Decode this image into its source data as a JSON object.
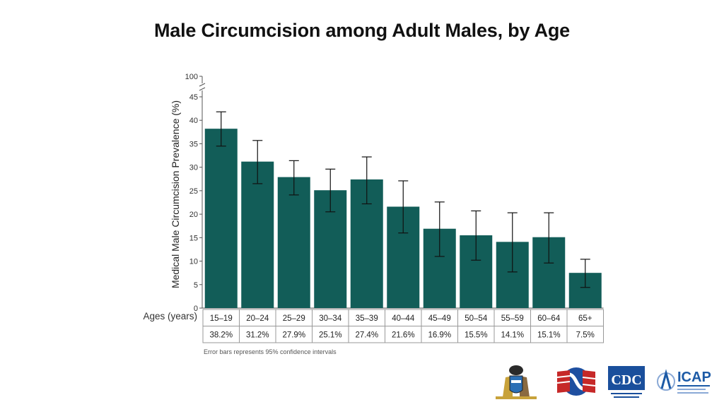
{
  "title": "Male Circumcision among Adult Males, by Age",
  "footnote": "Error bars represents 95% confidence intervals",
  "chart_data": {
    "type": "bar",
    "title": "",
    "ylabel": "Medical Male Circumcision Prevalence (%)",
    "xlabel": "Ages (years)",
    "ylim": [
      0,
      45
    ],
    "y_ticks": [
      0,
      5,
      10,
      15,
      20,
      25,
      30,
      35,
      40,
      45
    ],
    "y_break_label": "100",
    "categories": [
      "15–19",
      "20–24",
      "25–29",
      "30–34",
      "35–39",
      "40–44",
      "45–49",
      "50–54",
      "55–59",
      "60–64",
      "65+"
    ],
    "values": [
      38.2,
      31.2,
      27.9,
      25.1,
      27.4,
      21.6,
      16.9,
      15.5,
      14.1,
      15.1,
      7.5
    ],
    "value_labels": [
      "38.2%",
      "31.2%",
      "27.9%",
      "25.1%",
      "27.4%",
      "21.6%",
      "16.9%",
      "15.5%",
      "14.1%",
      "15.1%",
      "7.5%"
    ],
    "ci_low": [
      34.5,
      26.5,
      24.1,
      20.5,
      22.2,
      16.0,
      11.0,
      10.2,
      7.7,
      9.6,
      4.4
    ],
    "ci_high": [
      41.8,
      35.7,
      31.4,
      29.6,
      32.2,
      27.1,
      22.6,
      20.7,
      20.3,
      20.3,
      10.4
    ],
    "bar_color": "#125d58",
    "grid": false
  },
  "logos": [
    {
      "name": "swaziland-coat-of-arms",
      "colors": [
        "#2b6fb5",
        "#c8a23a",
        "#6b4a2a"
      ]
    },
    {
      "name": "pepfar-flags",
      "colors": [
        "#c62828",
        "#1e4fa0",
        "#ffffff"
      ]
    },
    {
      "name": "cdc",
      "colors": [
        "#1a4f9c",
        "#ffffff"
      ]
    },
    {
      "name": "icap",
      "colors": [
        "#1c5aa6",
        "#8aa9d6"
      ]
    }
  ]
}
